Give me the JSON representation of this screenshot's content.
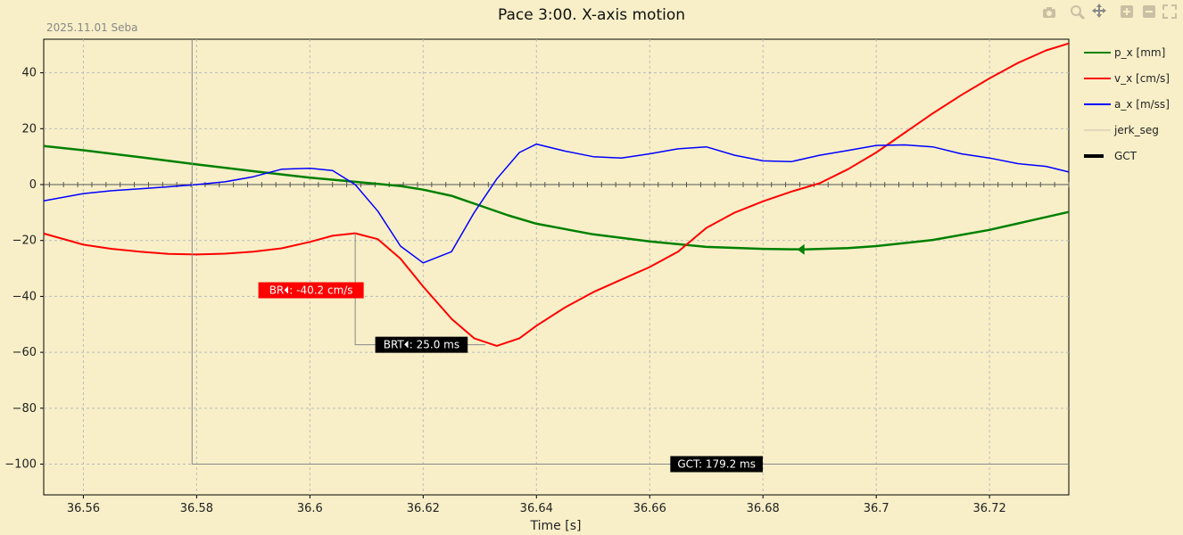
{
  "chart_data": {
    "type": "line",
    "title": "Pace 3:00. X-axis motion",
    "subtitle": "2025.11.01 Seba",
    "xlabel": "Time [s]",
    "ylabel": "",
    "xlim": [
      36.553,
      36.734
    ],
    "ylim": [
      -111,
      52
    ],
    "x_ticks": [
      36.56,
      36.58,
      36.6,
      36.62,
      36.64,
      36.66,
      36.68,
      36.7,
      36.72
    ],
    "x_tick_labels": [
      "36.56",
      "36.58",
      "36.6",
      "36.62",
      "36.64",
      "36.66",
      "36.68",
      "36.7",
      "36.72"
    ],
    "y_ticks": [
      -100,
      -80,
      -60,
      -40,
      -20,
      0,
      20,
      40
    ],
    "y_tick_labels": [
      "−100",
      "−80",
      "−60",
      "−40",
      "−20",
      "0",
      "20",
      "40"
    ],
    "grid": true,
    "legend_position": "right",
    "series": [
      {
        "name": "p_x [mm]",
        "color": "#008000",
        "x": [
          36.553,
          36.56,
          36.57,
          36.58,
          36.59,
          36.6,
          36.608,
          36.616,
          36.62,
          36.625,
          36.63,
          36.635,
          36.64,
          36.65,
          36.66,
          36.67,
          36.68,
          36.687,
          36.695,
          36.7,
          36.71,
          36.72,
          36.734
        ],
        "y": [
          13.8,
          12.3,
          9.8,
          7.2,
          4.8,
          2.5,
          1.0,
          -0.5,
          -1.8,
          -4.0,
          -7.5,
          -11.0,
          -14.0,
          -17.8,
          -20.3,
          -22.3,
          -23.0,
          -23.2,
          -22.7,
          -22.0,
          -19.8,
          -16.2,
          -9.8
        ]
      },
      {
        "name": "v_x [cm/s]",
        "color": "#ff0000",
        "x": [
          36.553,
          36.56,
          36.565,
          36.57,
          36.575,
          36.58,
          36.585,
          36.59,
          36.595,
          36.6,
          36.604,
          36.608,
          36.612,
          36.616,
          36.62,
          36.625,
          36.629,
          36.633,
          36.637,
          36.64,
          36.645,
          36.65,
          36.655,
          36.66,
          36.665,
          36.67,
          36.675,
          36.68,
          36.685,
          36.69,
          36.695,
          36.7,
          36.705,
          36.71,
          36.715,
          36.72,
          36.725,
          36.73,
          36.734
        ],
        "y": [
          -17.5,
          -21.5,
          -23.0,
          -24.0,
          -24.8,
          -25.0,
          -24.7,
          -24.0,
          -22.8,
          -20.5,
          -18.3,
          -17.4,
          -19.5,
          -26.5,
          -36.5,
          -48.0,
          -55.0,
          -57.7,
          -55.0,
          -50.5,
          -44.0,
          -38.5,
          -34.0,
          -29.5,
          -24.0,
          -15.5,
          -10.0,
          -6.0,
          -2.5,
          0.5,
          5.5,
          11.5,
          18.5,
          25.5,
          32.0,
          38.0,
          43.5,
          48.0,
          50.5
        ]
      },
      {
        "name": "a_x [m/ss]",
        "color": "#0000ff",
        "x": [
          36.553,
          36.56,
          36.565,
          36.57,
          36.575,
          36.58,
          36.585,
          36.59,
          36.595,
          36.6,
          36.604,
          36.608,
          36.612,
          36.616,
          36.62,
          36.625,
          36.629,
          36.633,
          36.637,
          36.64,
          36.645,
          36.65,
          36.655,
          36.66,
          36.665,
          36.67,
          36.675,
          36.68,
          36.685,
          36.69,
          36.695,
          36.7,
          36.705,
          36.71,
          36.715,
          36.72,
          36.725,
          36.73,
          36.734
        ],
        "y": [
          -5.8,
          -3.2,
          -2.2,
          -1.5,
          -0.8,
          0.0,
          1.0,
          2.8,
          5.5,
          5.8,
          5.0,
          0.0,
          -9.5,
          -22.0,
          -28.0,
          -24.0,
          -10.0,
          2.0,
          11.5,
          14.5,
          12.0,
          10.0,
          9.5,
          11.0,
          12.8,
          13.5,
          10.5,
          8.5,
          8.2,
          10.5,
          12.2,
          14.0,
          14.2,
          13.5,
          11.0,
          9.5,
          7.5,
          6.5,
          4.5
        ]
      },
      {
        "name": "jerk_seg",
        "color": "#cccccc",
        "x": [],
        "y": []
      },
      {
        "name": "GCT",
        "color": "#000000",
        "x": [
          36.5792,
          36.5792,
          36.734
        ],
        "y": [
          52,
          -100,
          -100
        ]
      }
    ],
    "annotations": [
      {
        "text": "BR⏴: -40.2 cm/s",
        "x": 36.6002,
        "y": -37.8,
        "bg": "#ff0000"
      },
      {
        "text": "BRT⏴: 25.0 ms",
        "x": 36.6197,
        "y": -57.3,
        "bg": "#000000"
      },
      {
        "text": "GCT: 179.2 ms",
        "x": 36.6718,
        "y": -100,
        "bg": "#000000"
      }
    ],
    "bracket_brt": {
      "x": 36.608,
      "y_top": -17.4,
      "y_bottom": -57.3,
      "x_end": 36.631
    },
    "marker": {
      "series": "p_x [mm]",
      "x": 36.687,
      "y": -23.2
    }
  }
}
